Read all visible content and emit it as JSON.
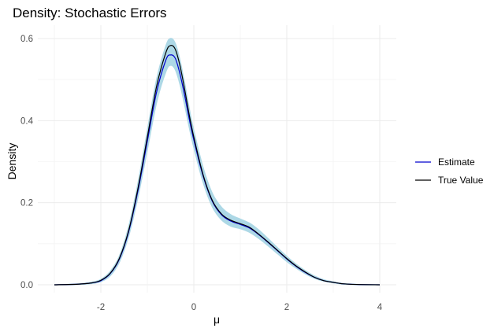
{
  "chart_data": {
    "type": "line",
    "title": "Density: Stochastic Errors",
    "xlabel": "μ",
    "ylabel": "Density",
    "xlim": [
      -3,
      4
    ],
    "ylim": [
      0,
      0.6
    ],
    "x_ticks": [
      -2,
      0,
      2,
      4
    ],
    "x_tick_labels": [
      "-2",
      "0",
      "2",
      "4"
    ],
    "y_ticks": [
      0,
      0.2,
      0.4,
      0.6
    ],
    "y_tick_labels": [
      "0.0",
      "0.2",
      "0.4",
      "0.6"
    ],
    "grid": true,
    "legend_position": "right",
    "colors": {
      "band": "#add8e6",
      "estimate": "#0000cd",
      "true_value": "#000000"
    },
    "x": [
      -3.0,
      -2.5,
      -2.2,
      -2.0,
      -1.8,
      -1.6,
      -1.4,
      -1.2,
      -1.0,
      -0.8,
      -0.6,
      -0.5,
      -0.4,
      -0.3,
      -0.2,
      -0.1,
      0.0,
      0.2,
      0.4,
      0.6,
      0.8,
      1.0,
      1.2,
      1.4,
      1.6,
      1.8,
      2.0,
      2.2,
      2.4,
      2.6,
      2.8,
      3.0,
      3.2,
      3.5,
      4.0
    ],
    "band_lower": [
      0.0,
      0.001,
      0.003,
      0.008,
      0.022,
      0.056,
      0.12,
      0.215,
      0.33,
      0.445,
      0.52,
      0.535,
      0.525,
      0.49,
      0.44,
      0.385,
      0.335,
      0.25,
      0.19,
      0.158,
      0.143,
      0.137,
      0.128,
      0.113,
      0.095,
      0.076,
      0.057,
      0.041,
      0.027,
      0.016,
      0.009,
      0.005,
      0.002,
      0.0005,
      0.0
    ],
    "band_upper": [
      0.0,
      0.002,
      0.006,
      0.013,
      0.032,
      0.07,
      0.142,
      0.248,
      0.375,
      0.5,
      0.582,
      0.6,
      0.588,
      0.548,
      0.492,
      0.43,
      0.375,
      0.285,
      0.222,
      0.188,
      0.17,
      0.16,
      0.15,
      0.133,
      0.112,
      0.09,
      0.069,
      0.05,
      0.034,
      0.021,
      0.012,
      0.007,
      0.003,
      0.001,
      0.0
    ],
    "series": [
      {
        "name": "Estimate",
        "values": [
          0.0,
          0.0015,
          0.0045,
          0.01,
          0.027,
          0.063,
          0.13,
          0.23,
          0.35,
          0.47,
          0.548,
          0.56,
          0.552,
          0.515,
          0.463,
          0.405,
          0.353,
          0.265,
          0.203,
          0.17,
          0.155,
          0.147,
          0.138,
          0.122,
          0.103,
          0.083,
          0.063,
          0.045,
          0.03,
          0.018,
          0.01,
          0.006,
          0.0025,
          0.0008,
          0.0
        ]
      },
      {
        "name": "True Value",
        "values": [
          0.0,
          0.0015,
          0.0045,
          0.011,
          0.028,
          0.065,
          0.133,
          0.236,
          0.36,
          0.484,
          0.566,
          0.583,
          0.574,
          0.535,
          0.478,
          0.415,
          0.36,
          0.268,
          0.205,
          0.172,
          0.157,
          0.149,
          0.14,
          0.123,
          0.104,
          0.084,
          0.064,
          0.046,
          0.031,
          0.018,
          0.01,
          0.006,
          0.0025,
          0.0008,
          0.0
        ]
      }
    ]
  }
}
